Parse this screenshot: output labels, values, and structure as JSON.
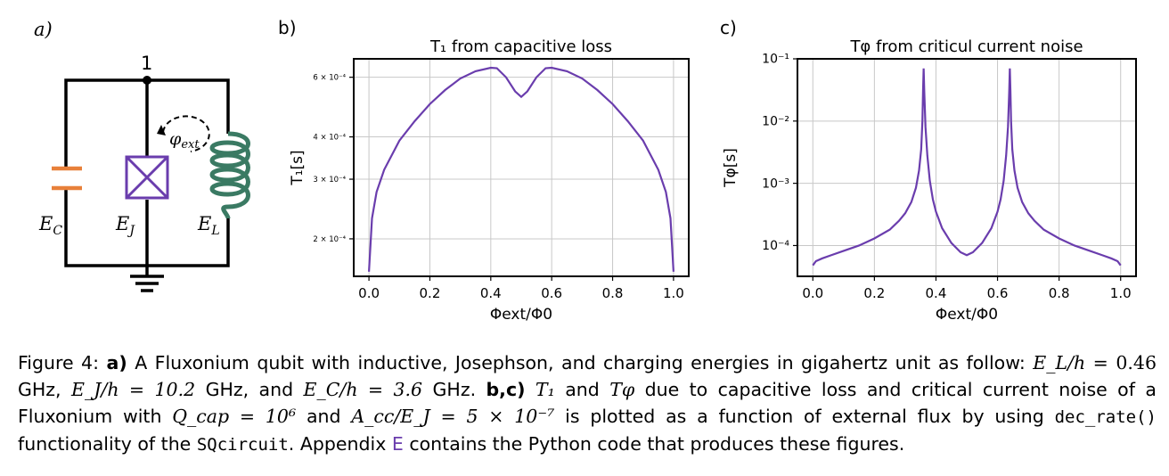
{
  "panel_a": {
    "label": "a)",
    "node_label": "1",
    "cap_label": "E",
    "cap_sub": "C",
    "jj_label": "E",
    "jj_sub": "J",
    "ind_label": "E",
    "ind_sub": "L",
    "flux_label": "φ",
    "flux_sub": "ext",
    "colors": {
      "capacitor": "#e8803a",
      "junction": "#6a3dad",
      "inductor": "#3a7a63"
    }
  },
  "panel_b": {
    "label": "b)"
  },
  "panel_c": {
    "label": "c)"
  },
  "chart_data": [
    {
      "type": "line",
      "title": "T₁ from capacitive loss",
      "xlabel": "Φext/Φ0",
      "ylabel": "T₁[s]",
      "xlim": [
        -0.05,
        1.05
      ],
      "ylim_log": [
        0.000155,
        0.00068
      ],
      "x_ticks": [
        0.0,
        0.2,
        0.4,
        0.6,
        0.8,
        1.0
      ],
      "x_tick_labels": [
        "0.0",
        "0.2",
        "0.4",
        "0.6",
        "0.8",
        "1.0"
      ],
      "y_ticks": [
        0.0002,
        0.0003,
        0.0004,
        0.0006
      ],
      "y_tick_labels": [
        "2 × 10⁻⁴",
        "3 × 10⁻⁴",
        "4 × 10⁻⁴",
        "6 × 10⁻⁴"
      ],
      "grid": true,
      "color": "#6a3dad",
      "series": [
        {
          "x": [
            0.0,
            0.01,
            0.025,
            0.05,
            0.1,
            0.15,
            0.2,
            0.25,
            0.3,
            0.35,
            0.4,
            0.42,
            0.45,
            0.48,
            0.5,
            0.52,
            0.55,
            0.58,
            0.6,
            0.65,
            0.7,
            0.75,
            0.8,
            0.85,
            0.9,
            0.95,
            0.975,
            0.99,
            1.0
          ],
          "values": [
            0.00016,
            0.00023,
            0.000275,
            0.00032,
            0.00039,
            0.000445,
            0.0005,
            0.00055,
            0.000595,
            0.000625,
            0.00064,
            0.000638,
            0.0006,
            0.000545,
            0.000525,
            0.000545,
            0.0006,
            0.000638,
            0.00064,
            0.000625,
            0.000595,
            0.00055,
            0.0005,
            0.000445,
            0.00039,
            0.00032,
            0.000275,
            0.00023,
            0.00016
          ]
        }
      ]
    },
    {
      "type": "line",
      "title": "Tφ from criticul current noise",
      "xlabel": "Φext/Φ0",
      "ylabel": "Tφ[s]",
      "xlim": [
        -0.05,
        1.05
      ],
      "ylim_log": [
        3.2e-05,
        0.1
      ],
      "x_ticks": [
        0.0,
        0.2,
        0.4,
        0.6,
        0.8,
        1.0
      ],
      "x_tick_labels": [
        "0.0",
        "0.2",
        "0.4",
        "0.6",
        "0.8",
        "1.0"
      ],
      "y_ticks": [
        0.0001,
        0.001,
        0.01,
        0.1
      ],
      "y_tick_labels": [
        "10⁻⁴",
        "10⁻³",
        "10⁻²",
        "10⁻¹"
      ],
      "grid": true,
      "color": "#6a3dad",
      "series": [
        {
          "x": [
            0.0,
            0.01,
            0.03,
            0.06,
            0.1,
            0.15,
            0.2,
            0.25,
            0.28,
            0.3,
            0.32,
            0.335,
            0.345,
            0.352,
            0.356,
            0.358,
            0.36,
            0.362,
            0.366,
            0.372,
            0.38,
            0.39,
            0.4,
            0.42,
            0.45,
            0.48,
            0.5,
            0.52,
            0.55,
            0.58,
            0.6,
            0.61,
            0.62,
            0.628,
            0.634,
            0.638,
            0.64,
            0.642,
            0.644,
            0.648,
            0.655,
            0.665,
            0.68,
            0.7,
            0.72,
            0.75,
            0.8,
            0.85,
            0.9,
            0.94,
            0.97,
            0.99,
            1.0
          ],
          "values": [
            4.8e-05,
            5.6e-05,
            6.2e-05,
            7e-05,
            8.2e-05,
            0.0001,
            0.00013,
            0.00018,
            0.00025,
            0.00033,
            0.0005,
            0.00085,
            0.0016,
            0.0035,
            0.01,
            0.03,
            0.07,
            0.03,
            0.008,
            0.0028,
            0.0011,
            0.00055,
            0.00035,
            0.00019,
            0.00011,
            7.8e-05,
            7e-05,
            7.8e-05,
            0.00011,
            0.00019,
            0.00035,
            0.00055,
            0.0011,
            0.0028,
            0.008,
            0.03,
            0.07,
            0.03,
            0.01,
            0.0035,
            0.0016,
            0.00085,
            0.0005,
            0.00033,
            0.00025,
            0.00018,
            0.00013,
            0.0001,
            8.2e-05,
            7e-05,
            6.2e-05,
            5.6e-05,
            4.8e-05
          ]
        }
      ]
    }
  ],
  "caption": {
    "fig_label": "Figure 4:",
    "a_bold": "a)",
    "a_text": "A Fluxonium qubit with inductive, Josephson, and charging energies in gigahertz unit as follow:",
    "el_math": "E_L/h =",
    "el_val": "0.46",
    "ghz1": "GHz,",
    "ej_math": "E_J/h = 10.2",
    "ghz2": "GHz, and",
    "ec_math": "E_C/h = 3.6",
    "ghz3": "GHz.",
    "bc_bold": "b,c)",
    "t1_math": "T₁",
    "and_word": "and",
    "tphi_math": "Tφ",
    "bc_text1": "due to capacitive loss and critical current noise of a Fluxonium with",
    "q_math": "Q_cap = 10⁶",
    "and2": "and",
    "acc_math": "A_cc/E_J = 5 × 10⁻⁷",
    "bc_text2": "is plotted as a function of external flux by using",
    "code1": "dec_rate()",
    "bc_text3": "functionality of the",
    "code2": "SQcircuit",
    "bc_text4": ". Appendix",
    "appendix_link": "E",
    "bc_text5": "contains the Python code that produces these figures."
  }
}
